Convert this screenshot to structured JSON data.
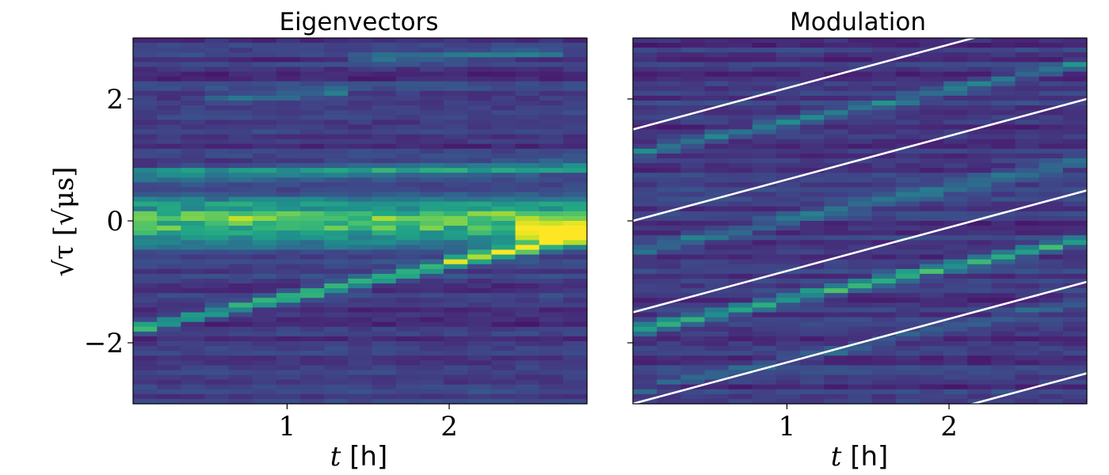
{
  "chart_data": [
    {
      "type": "heatmap",
      "title": "Eigenvectors",
      "xlabel": "t [h]",
      "ylabel": "√τ [√μs]",
      "xlim": [
        0.05,
        2.85
      ],
      "ylim": [
        -3,
        3
      ],
      "xticks": [
        1,
        2
      ],
      "yticks": [
        -2,
        0,
        2
      ],
      "colormap": "viridis",
      "time_bins": 19,
      "features": [
        {
          "t": [
            0.05,
            2.85
          ],
          "y": [
            0.0,
            0.0
          ],
          "w": 0.28,
          "v": 0.55
        },
        {
          "t": [
            0.05,
            2.85
          ],
          "y": [
            0.75,
            0.88
          ],
          "w": 0.08,
          "v": 0.35
        },
        {
          "t": [
            0.1,
            2.85
          ],
          "y": [
            -1.75,
            -0.25
          ],
          "w": 0.06,
          "v": 0.5
        },
        {
          "t": [
            2.6,
            2.85
          ],
          "y": [
            -0.18,
            -0.18
          ],
          "w": 0.12,
          "v": 0.45
        },
        {
          "t": [
            2.05,
            2.4
          ],
          "y": [
            -0.6,
            -0.5
          ],
          "w": 0.06,
          "v": 0.3
        },
        {
          "t": [
            0.7,
            1.3
          ],
          "y": [
            2.0,
            2.1
          ],
          "w": 0.05,
          "v": 0.2
        },
        {
          "t": [
            1.5,
            2.6
          ],
          "y": [
            2.65,
            2.75
          ],
          "w": 0.05,
          "v": 0.22
        }
      ]
    },
    {
      "type": "heatmap",
      "title": "Modulation",
      "xlabel": "t [h]",
      "ylabel": "",
      "xlim": [
        0.05,
        2.85
      ],
      "ylim": [
        -3,
        3
      ],
      "xticks": [
        1,
        2
      ],
      "yticks": [
        -2,
        0,
        2
      ],
      "colormap": "viridis",
      "time_bins": 19,
      "features": [
        {
          "t": [
            0.05,
            2.85
          ],
          "y": [
            -1.8,
            -0.3
          ],
          "w": 0.06,
          "v": 0.45
        },
        {
          "t": [
            0.05,
            2.85
          ],
          "y": [
            -0.5,
            1.0
          ],
          "w": 0.07,
          "v": 0.22
        },
        {
          "t": [
            0.05,
            2.85
          ],
          "y": [
            1.1,
            2.6
          ],
          "w": 0.06,
          "v": 0.25
        },
        {
          "t": [
            0.05,
            2.85
          ],
          "y": [
            -2.8,
            -1.3
          ],
          "w": 0.05,
          "v": 0.15
        }
      ],
      "lines": [
        {
          "t": [
            0.05,
            2.85
          ],
          "y": [
            1.5,
            3.5
          ]
        },
        {
          "t": [
            0.05,
            2.85
          ],
          "y": [
            0.0,
            2.0
          ]
        },
        {
          "t": [
            0.05,
            2.85
          ],
          "y": [
            -1.5,
            0.5
          ]
        },
        {
          "t": [
            0.05,
            2.85
          ],
          "y": [
            -3.0,
            -1.0
          ]
        },
        {
          "t": [
            0.05,
            2.85
          ],
          "y": [
            -4.5,
            -2.5
          ]
        }
      ],
      "line_color": "#ffffff"
    }
  ]
}
